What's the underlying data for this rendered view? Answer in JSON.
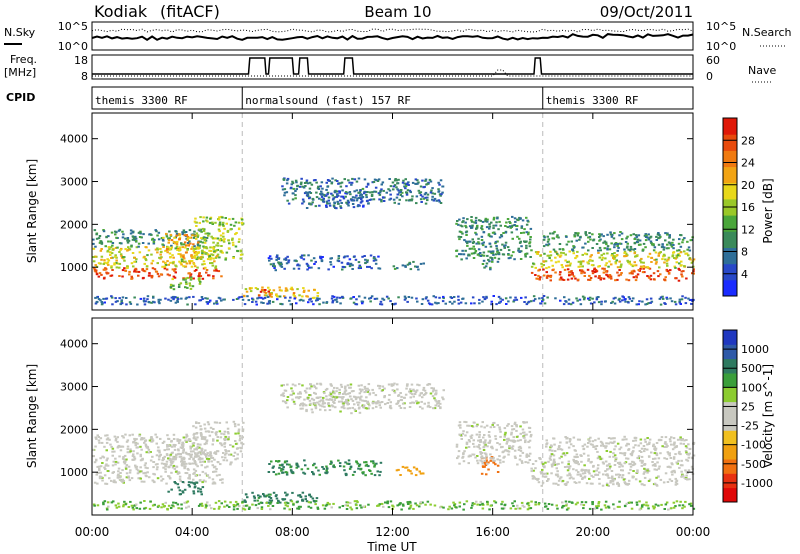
{
  "header": {
    "radar": "Kodiak",
    "mode": "(fitACF)",
    "beam_label": "Beam 10",
    "date": "09/Oct/2011"
  },
  "strip_labels": {
    "nsky": "N.Sky",
    "nsearch": "N.Search",
    "freq_line1": "Freq.",
    "freq_line2": "[MHz]",
    "nave": "Nave",
    "cpid": "CPID"
  },
  "noise_ticks": {
    "left_top": "10^5",
    "left_bottom": "10^0",
    "right_top": "10^5",
    "right_bottom": "10^0"
  },
  "freq_ticks": {
    "left_top": "18",
    "left_bottom": "8",
    "right_top": "60",
    "right_bottom": "0"
  },
  "cpid_segments": [
    {
      "label": "themis 3300 RF",
      "start_h": 0,
      "end_h": 6
    },
    {
      "label": "normalsound (fast) 157 RF",
      "start_h": 6,
      "end_h": 18
    },
    {
      "label": "themis 3300 RF",
      "start_h": 18,
      "end_h": 24
    }
  ],
  "x_axis": {
    "label": "Time UT",
    "ticks": [
      "00:00",
      "04:00",
      "08:00",
      "12:00",
      "16:00",
      "20:00",
      "00:00"
    ]
  },
  "power_panel": {
    "ylabel": "Slant Range [km]",
    "yticks": [
      "1000",
      "2000",
      "3000",
      "4000"
    ],
    "colorbar_label": "Power [dB]",
    "colorbar_ticks": [
      "4",
      "8",
      "12",
      "16",
      "20",
      "24",
      "28"
    ],
    "colors": [
      "#1a2bff",
      "#2848c8",
      "#2e6e98",
      "#3a8a5a",
      "#4aa63a",
      "#9ac828",
      "#e8d81a",
      "#f2a414",
      "#f07a10",
      "#e84a0c",
      "#e01808"
    ]
  },
  "velocity_panel": {
    "ylabel": "Slant Range [km]",
    "yticks": [
      "1000",
      "2000",
      "3000",
      "4000"
    ],
    "colorbar_label": "Velocity [m s^-1]",
    "colorbar_ticks": [
      "1000",
      "500",
      "100",
      "25",
      "-25",
      "-100",
      "-500",
      "-1000"
    ],
    "colors": [
      "#2038c0",
      "#2f5aa8",
      "#2e7a60",
      "#3a9e3a",
      "#8ccc30",
      "#c8c8c0",
      "#c8c8c0",
      "#f0c020",
      "#f0a010",
      "#f07010",
      "#e83010",
      "#e00808"
    ]
  },
  "chart_data": {
    "type": "heatmap",
    "x_range_h": [
      0,
      24
    ],
    "y_range_km": [
      0,
      4600
    ],
    "scatter_regions": [
      {
        "t0": 0.0,
        "t1": 5.2,
        "r0": 750,
        "r1": 1000,
        "power_db": 28,
        "velocity": 0
      },
      {
        "t0": 0.0,
        "t1": 5.0,
        "r0": 1000,
        "r1": 1500,
        "power_db": 18,
        "velocity": 0
      },
      {
        "t0": 0.0,
        "t1": 4.6,
        "r0": 1500,
        "r1": 1900,
        "power_db": 10,
        "velocity": 0
      },
      {
        "t0": 2.8,
        "t1": 4.2,
        "r0": 1100,
        "r1": 1800,
        "power_db": 22,
        "velocity": 0
      },
      {
        "t0": 4.0,
        "t1": 6.0,
        "r0": 1200,
        "r1": 2200,
        "power_db": 16,
        "velocity": 0
      },
      {
        "t0": 3.0,
        "t1": 4.4,
        "r0": 500,
        "r1": 800,
        "power_db": 14,
        "velocity": 200
      },
      {
        "t0": 6.0,
        "t1": 9.0,
        "r0": 300,
        "r1": 550,
        "power_db": 20,
        "velocity": 150
      },
      {
        "t0": 6.5,
        "t1": 7.3,
        "r0": 350,
        "r1": 500,
        "power_db": 28,
        "velocity": 100
      },
      {
        "t0": 7.5,
        "t1": 14.0,
        "r0": 2500,
        "r1": 3100,
        "power_db": 8,
        "velocity": 0
      },
      {
        "t0": 8.5,
        "t1": 11.0,
        "r0": 2400,
        "r1": 2800,
        "power_db": 6,
        "velocity": 0
      },
      {
        "t0": 7.0,
        "t1": 11.5,
        "r0": 950,
        "r1": 1300,
        "power_db": 6,
        "velocity": 100
      },
      {
        "t0": 12.0,
        "t1": 13.2,
        "r0": 950,
        "r1": 1150,
        "power_db": 10,
        "velocity": -200
      },
      {
        "t0": 15.5,
        "t1": 16.2,
        "r0": 950,
        "r1": 1400,
        "power_db": 10,
        "velocity": -800
      },
      {
        "t0": 14.5,
        "t1": 17.5,
        "r0": 1200,
        "r1": 2200,
        "power_db": 10,
        "velocity": 0
      },
      {
        "t0": 17.5,
        "t1": 24.0,
        "r0": 700,
        "r1": 1000,
        "power_db": 28,
        "velocity": 0
      },
      {
        "t0": 17.5,
        "t1": 24.0,
        "r0": 1000,
        "r1": 1400,
        "power_db": 18,
        "velocity": 0
      },
      {
        "t0": 18.0,
        "t1": 24.0,
        "r0": 1400,
        "r1": 1850,
        "power_db": 10,
        "velocity": 0
      },
      {
        "t0": 0.0,
        "t1": 24.0,
        "r0": 150,
        "r1": 350,
        "power_db": 6,
        "velocity": 50
      }
    ]
  }
}
